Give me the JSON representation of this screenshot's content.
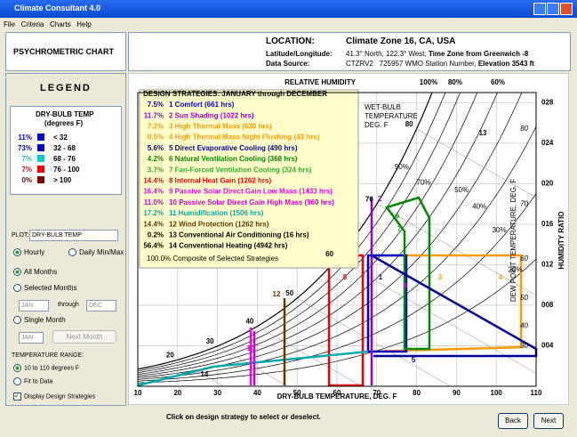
{
  "window": {
    "title": "Climate Consultant 4.0",
    "menu": [
      "File",
      "Criteria",
      "Charts",
      "Help"
    ]
  },
  "header": {
    "title": "PSYCHROMETRIC CHART",
    "location_label": "LOCATION:",
    "location": "Climate Zone 16, CA, USA",
    "latlon_label": "Latitude/Longitude:",
    "latlon": "41.3° North, 122.3° West, ",
    "timezone": "Time Zone from Greenwich -8",
    "source_label": "Data Source:",
    "source": "CTZRV2",
    "station": "725957 WMO Station Number, ",
    "elevation": "Elevation 3543 ft"
  },
  "legend": {
    "title": "LEGEND",
    "heading": "DRY-BULB TEMP",
    "units": "(degrees F)",
    "items": [
      {
        "pct": "11%",
        "range": "< 32",
        "color": "#0000cc"
      },
      {
        "pct": "73%",
        "range": "32 - 68",
        "color": "#0000cc"
      },
      {
        "pct": "7%",
        "range": "68 - 76",
        "color": "#00cccc"
      },
      {
        "pct": "7%",
        "range": "76 - 100",
        "color": "#ff0000"
      },
      {
        "pct": "0%",
        "range": "> 100",
        "color": "#800000"
      }
    ]
  },
  "controls": {
    "plot_label": "PLOT:",
    "plot_value": "DRY-BULB TEMP",
    "hourly": "Hourly",
    "daily": "Daily Min/Max",
    "all_months": "All Months",
    "selected_months": "Selected Months",
    "from": "JAN",
    "through": "through",
    "to": "DEC",
    "single_month": "Single Month",
    "month": "JAN",
    "next_month": "Next Month",
    "range_title": "TEMPERATURE RANGE:",
    "range_fixed": "10 to 110 degrees F",
    "range_fit": "Fit to Data",
    "display_strategies": "Display Design Strategies"
  },
  "chart": {
    "xlabel": "DRY-BULB TEMPERATURE, DEG. F",
    "xlim": [
      10,
      110
    ],
    "xticks": [
      10,
      20,
      30,
      40,
      50,
      60,
      70,
      80,
      90,
      100,
      110
    ],
    "y2label": "HUMIDITY RATIO",
    "y2lim": [
      0,
      0.029
    ],
    "y2ticks": [
      {
        "value": 0.004,
        "label": "004"
      },
      {
        "value": 0.008,
        "label": "008"
      },
      {
        "value": 0.012,
        "label": "012"
      },
      {
        "value": 0.016,
        "label": "016"
      },
      {
        "value": 0.02,
        "label": "020"
      },
      {
        "value": 0.024,
        "label": "024"
      },
      {
        "value": 0.028,
        "label": "028"
      }
    ],
    "dew_point_label": "DEW POINT TEMPERATURE, DEG. F",
    "wet_bulb_label": [
      "WET-BULB",
      "TEMPERATURE",
      "DEG. F"
    ],
    "rh_title": "RELATIVE HUMIDITY",
    "rh_curves": [
      {
        "value": 100,
        "label": "100%"
      },
      {
        "value": 90,
        "label": "90%"
      },
      {
        "value": 80,
        "label": "80%"
      },
      {
        "value": 70,
        "label": "70%"
      },
      {
        "value": 60,
        "label": "60%"
      },
      {
        "value": 50,
        "label": "50%"
      },
      {
        "value": 40,
        "label": "40%"
      },
      {
        "value": 30,
        "label": "30%"
      },
      {
        "value": 20,
        "label": "20%"
      }
    ],
    "wet_bulb_ticks": [
      20,
      30,
      40,
      50,
      60,
      70,
      80
    ],
    "dew_point_ticks": [
      30,
      40,
      50,
      60,
      70,
      80
    ],
    "strategies_title": "DESIGN STRATEGIES: JANUARY through DECEMBER",
    "strategies": [
      {
        "pct": "7.5%",
        "label": "1 Comfort (661 hrs)",
        "color": "#0000cc"
      },
      {
        "pct": "11.7%",
        "label": "2 Sun Shading (1022 hrs)",
        "color": "#9900cc"
      },
      {
        "pct": "7.2%",
        "label": "3 High Thermal Mass (630 hrs)",
        "color": "#ff9900"
      },
      {
        "pct": "0.5%",
        "label": "4 High Thermal Mass Night Flushing (43 hrs)",
        "color": "#ff9900"
      },
      {
        "pct": "5.6%",
        "label": "5 Direct Evaporative Cooling (490 hrs)",
        "color": "#000099"
      },
      {
        "pct": "4.2%",
        "label": "6 Natural Ventilation Cooling (368 hrs)",
        "color": "#008800"
      },
      {
        "pct": "3.7%",
        "label": "7 Fan-Forced Ventilation Cooling (324 hrs)",
        "color": "#33aa33"
      },
      {
        "pct": "14.4%",
        "label": "8 Internal Heat Gain (1262 hrs)",
        "color": "#ee0000"
      },
      {
        "pct": "16.4%",
        "label": "9 Passive Solar Direct Gain Low Mass (1433 hrs)",
        "color": "#ee00ee"
      },
      {
        "pct": "11.0%",
        "label": "10 Passive Solar Direct Gain High Mass (960 hrs)",
        "color": "#cc00cc"
      },
      {
        "pct": "17.2%",
        "label": "11 Humidification (1506 hrs)",
        "color": "#00aaaa"
      },
      {
        "pct": "14.4%",
        "label": "12 Wind Protection (1262 hrs)",
        "color": "#663300"
      },
      {
        "pct": "0.2%",
        "label": "13 Conventional Air Conditioning (16 hrs)",
        "color": "#000000"
      },
      {
        "pct": "56.4%",
        "label": "14 Conventional Heating (4942 hrs)",
        "color": "#000000"
      }
    ],
    "composite": "100.0% Composite of Selected Strategies",
    "zone_labels": [
      "1",
      "2",
      "3",
      "4",
      "5",
      "6",
      "7",
      "8",
      "9",
      "10",
      "12",
      "13",
      "14"
    ]
  },
  "footer": {
    "hint": "Click on design strategy to select or deselect.",
    "back": "Back",
    "next": "Next"
  }
}
